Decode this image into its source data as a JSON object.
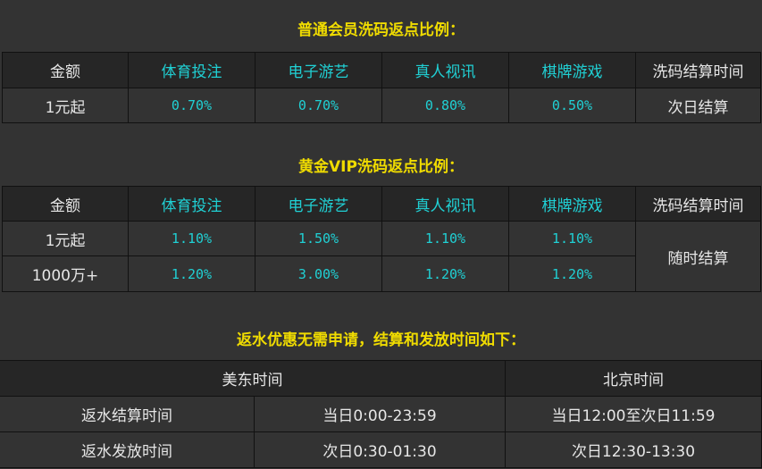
{
  "normal": {
    "title": "普通会员洗码返点比例：",
    "headers": [
      "金额",
      "体育投注",
      "电子游艺",
      "真人视讯",
      "棋牌游戏",
      "洗码结算时间"
    ],
    "rows": [
      {
        "amount": "1元起",
        "values": [
          "0.70%",
          "0.70%",
          "0.80%",
          "0.50%"
        ],
        "settle": "次日结算"
      }
    ]
  },
  "vip": {
    "title": "黄金VIP洗码返点比例：",
    "headers": [
      "金额",
      "体育投注",
      "电子游艺",
      "真人视讯",
      "棋牌游戏",
      "洗码结算时间"
    ],
    "rows": [
      {
        "amount": "1元起",
        "values": [
          "1.10%",
          "1.50%",
          "1.10%",
          "1.10%"
        ]
      },
      {
        "amount": "1000万+",
        "values": [
          "1.20%",
          "3.00%",
          "1.20%",
          "1.20%"
        ]
      }
    ],
    "settle": "随时结算"
  },
  "rebate": {
    "title": "返水优惠无需申请，结算和发放时间如下：",
    "headers": [
      "美东时间",
      "北京时间"
    ],
    "rows": [
      {
        "label": "返水结算时间",
        "us": "当日0:00-23:59",
        "bj": "当日12:00至次日11:59"
      },
      {
        "label": "返水发放时间",
        "us": "次日0:30-01:30",
        "bj": "次日12:30-13:30"
      }
    ]
  },
  "colors": {
    "background": "#333333",
    "title": "#f0dc00",
    "accent": "#20d0d4",
    "header": "#262626"
  }
}
